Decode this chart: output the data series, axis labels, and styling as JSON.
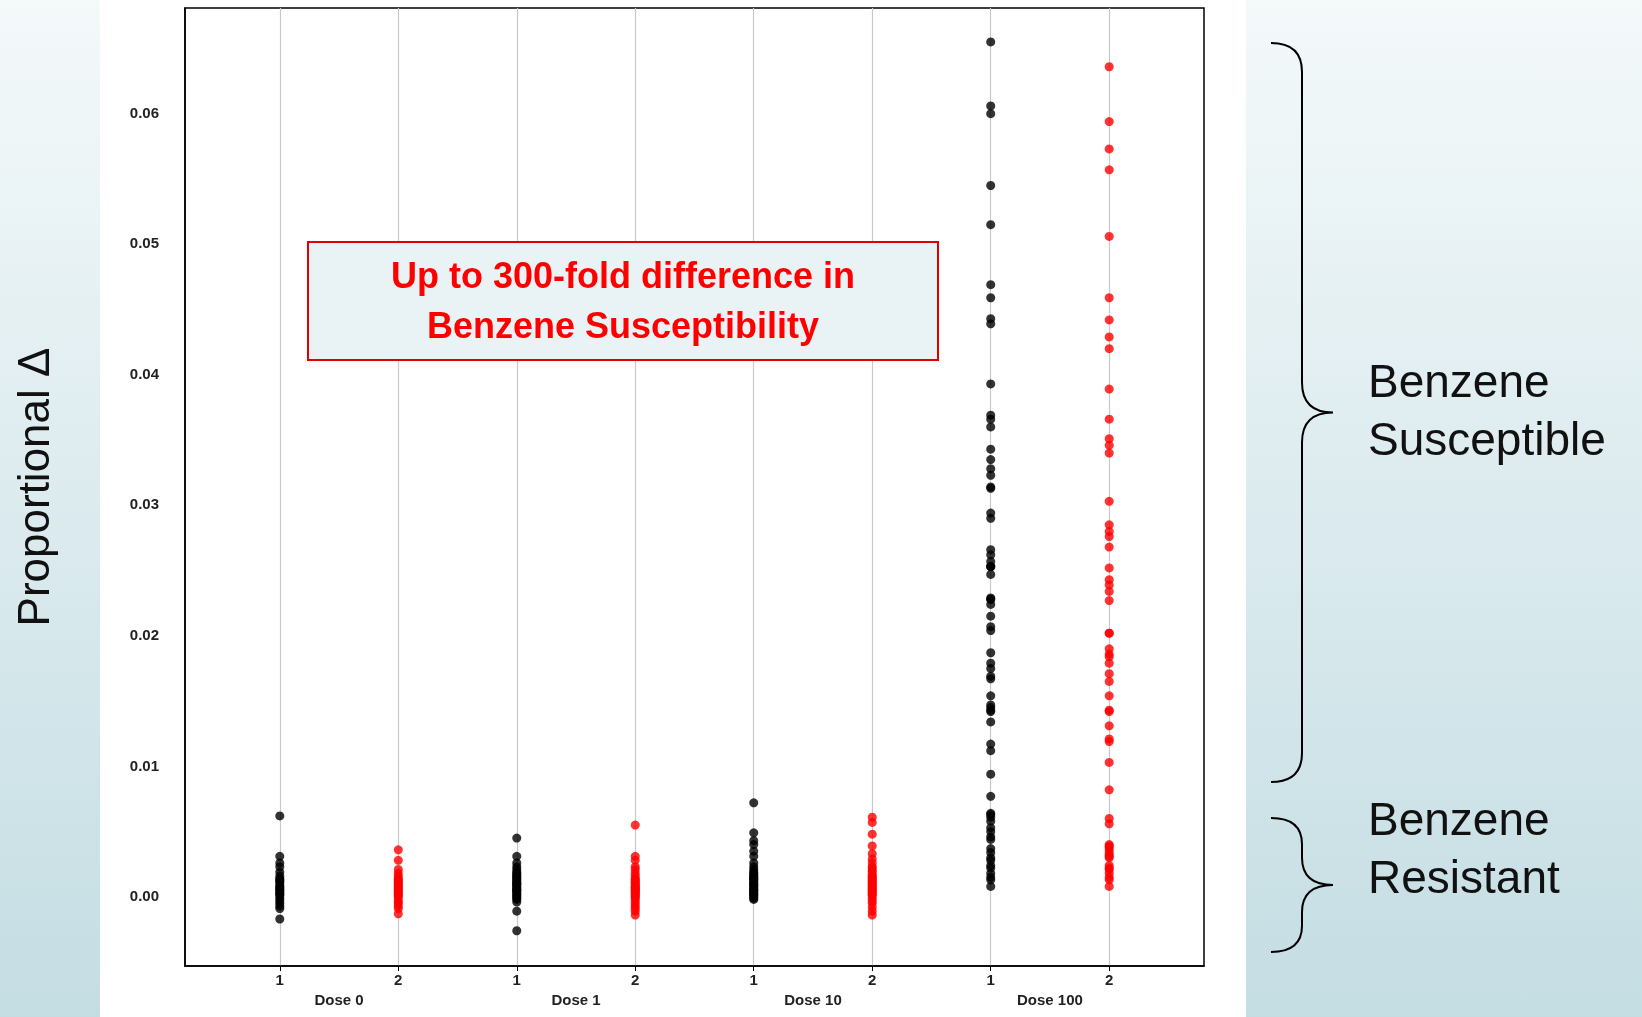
{
  "chart_data": {
    "type": "scatter",
    "ylabel": "Proportional Δ",
    "marker": "circle",
    "grid": "x",
    "legend": false,
    "categories": [
      "Dose 0",
      "Dose 1",
      "Dose 10",
      "Dose 100"
    ],
    "ylim": [
      -0.0054,
      0.068
    ],
    "yticks": [
      {
        "value": 0,
        "label": "0.00"
      },
      {
        "value": 0.01,
        "label": "0.01"
      },
      {
        "value": 0.02,
        "label": "0.02"
      },
      {
        "value": 0.03,
        "label": "0.03"
      },
      {
        "value": 0.04,
        "label": "0.04"
      },
      {
        "value": 0.05,
        "label": "0.05"
      },
      {
        "value": 0.06,
        "label": "0.06"
      }
    ],
    "annotations": [
      "Up to 300-fold difference in Benzene Susceptibility",
      "Benzene Susceptible",
      "Benzene Resistant"
    ],
    "series": [
      {
        "name": "1",
        "color": "#000000",
        "x": [
          "Dose 0",
          "Dose 0",
          "Dose 0",
          "Dose 0",
          "Dose 0",
          "Dose 0",
          "Dose 0",
          "Dose 0",
          "Dose 0",
          "Dose 0",
          "Dose 0",
          "Dose 0",
          "Dose 0",
          "Dose 0",
          "Dose 0",
          "Dose 0",
          "Dose 0",
          "Dose 0",
          "Dose 0",
          "Dose 0",
          "Dose 0",
          "Dose 0",
          "Dose 0",
          "Dose 0",
          "Dose 0",
          "Dose 1",
          "Dose 1",
          "Dose 1",
          "Dose 1",
          "Dose 1",
          "Dose 1",
          "Dose 1",
          "Dose 1",
          "Dose 1",
          "Dose 1",
          "Dose 1",
          "Dose 1",
          "Dose 1",
          "Dose 1",
          "Dose 1",
          "Dose 1",
          "Dose 1",
          "Dose 1",
          "Dose 1",
          "Dose 1",
          "Dose 1",
          "Dose 1",
          "Dose 1",
          "Dose 1",
          "Dose 1",
          "Dose 1",
          "Dose 1",
          "Dose 1",
          "Dose 1",
          "Dose 1",
          "Dose 1",
          "Dose 1",
          "Dose 10",
          "Dose 10",
          "Dose 10",
          "Dose 10",
          "Dose 10",
          "Dose 10",
          "Dose 10",
          "Dose 10",
          "Dose 10",
          "Dose 10",
          "Dose 10",
          "Dose 10",
          "Dose 10",
          "Dose 10",
          "Dose 10",
          "Dose 10",
          "Dose 10",
          "Dose 10",
          "Dose 10",
          "Dose 10",
          "Dose 10",
          "Dose 10",
          "Dose 10",
          "Dose 10",
          "Dose 10",
          "Dose 10",
          "Dose 10",
          "Dose 10",
          "Dose 10",
          "Dose 10",
          "Dose 10",
          "Dose 10",
          "Dose 10",
          "Dose 10",
          "Dose 10",
          "Dose 100",
          "Dose 100",
          "Dose 100",
          "Dose 100",
          "Dose 100",
          "Dose 100",
          "Dose 100",
          "Dose 100",
          "Dose 100",
          "Dose 100",
          "Dose 100",
          "Dose 100",
          "Dose 100",
          "Dose 100",
          "Dose 100",
          "Dose 100",
          "Dose 100",
          "Dose 100",
          "Dose 100",
          "Dose 100",
          "Dose 100",
          "Dose 100",
          "Dose 100",
          "Dose 100",
          "Dose 100",
          "Dose 100",
          "Dose 100",
          "Dose 100",
          "Dose 100",
          "Dose 100",
          "Dose 100",
          "Dose 100",
          "Dose 100",
          "Dose 100",
          "Dose 100",
          "Dose 100",
          "Dose 100",
          "Dose 100",
          "Dose 100",
          "Dose 100",
          "Dose 100",
          "Dose 100",
          "Dose 100",
          "Dose 100",
          "Dose 100",
          "Dose 100",
          "Dose 100",
          "Dose 100",
          "Dose 100",
          "Dose 100",
          "Dose 100",
          "Dose 100",
          "Dose 100",
          "Dose 100",
          "Dose 100",
          "Dose 100",
          "Dose 100",
          "Dose 100",
          "Dose 100",
          "Dose 100",
          "Dose 100",
          "Dose 100",
          "Dose 100",
          "Dose 100",
          "Dose 100",
          "Dose 100",
          "Dose 100",
          "Dose 100"
        ],
        "values": [
          0.0061,
          0.003,
          0.0025,
          0.0022,
          0.0018,
          0.0015,
          0.0013,
          0.0011,
          0.001,
          0.0008,
          0.0006,
          0.0005,
          0.0003,
          0.0002,
          0.0,
          -0.0002,
          -0.0004,
          -0.0006,
          -0.0008,
          -0.001,
          -0.0018,
          0.0012,
          0.0007,
          0.0004,
          0.0001,
          0.0044,
          0.003,
          0.0025,
          0.0022,
          0.002,
          0.0018,
          0.0017,
          0.0015,
          0.0014,
          0.0013,
          0.0012,
          0.0011,
          0.001,
          0.0009,
          0.0008,
          0.0007,
          0.0006,
          0.0005,
          0.0004,
          0.0003,
          0.0002,
          0.0001,
          0.0,
          -0.0001,
          -0.0002,
          -0.0003,
          -0.0005,
          -0.0012,
          -0.0027,
          0.0016,
          0.0009,
          0.0004,
          0.0071,
          0.0048,
          0.0042,
          0.0039,
          0.0034,
          0.003,
          0.0025,
          0.0022,
          0.002,
          0.0018,
          0.0017,
          0.0016,
          0.0015,
          0.0014,
          0.0013,
          0.0012,
          0.0011,
          0.001,
          0.0009,
          0.0008,
          0.0007,
          0.0006,
          0.0005,
          0.0004,
          0.0003,
          0.0002,
          0.0001,
          0.0,
          -0.0001,
          -0.0002,
          -0.0003,
          0.0013,
          0.0008,
          0.0004,
          0.0001,
          0.0654,
          0.0605,
          0.0599,
          0.0544,
          0.0514,
          0.0468,
          0.0458,
          0.0442,
          0.0438,
          0.0392,
          0.0368,
          0.0365,
          0.0359,
          0.0342,
          0.0334,
          0.0327,
          0.0322,
          0.0313,
          0.0312,
          0.0293,
          0.0289,
          0.0265,
          0.0261,
          0.0256,
          0.0252,
          0.0252,
          0.0252,
          0.0246,
          0.0227,
          0.0227,
          0.0228,
          0.0223,
          0.0214,
          0.0206,
          0.0203,
          0.0186,
          0.0178,
          0.0174,
          0.0168,
          0.0166,
          0.0153,
          0.0146,
          0.0144,
          0.0142,
          0.0141,
          0.0133,
          0.0116,
          0.0111,
          0.0093,
          0.0076,
          0.0063,
          0.0062,
          0.006,
          0.0057,
          0.0052,
          0.0049,
          0.0045,
          0.0043,
          0.0036,
          0.0033,
          0.0029,
          0.0027,
          0.0023,
          0.0021,
          0.0017,
          0.0014,
          0.0012,
          0.0007
        ]
      },
      {
        "name": "2",
        "color": "#ff0000",
        "x": [
          "Dose 0",
          "Dose 0",
          "Dose 0",
          "Dose 0",
          "Dose 0",
          "Dose 0",
          "Dose 0",
          "Dose 0",
          "Dose 0",
          "Dose 0",
          "Dose 0",
          "Dose 0",
          "Dose 0",
          "Dose 0",
          "Dose 0",
          "Dose 0",
          "Dose 0",
          "Dose 0",
          "Dose 0",
          "Dose 0",
          "Dose 0",
          "Dose 0",
          "Dose 0",
          "Dose 0",
          "Dose 0",
          "Dose 0",
          "Dose 1",
          "Dose 1",
          "Dose 1",
          "Dose 1",
          "Dose 1",
          "Dose 1",
          "Dose 1",
          "Dose 1",
          "Dose 1",
          "Dose 1",
          "Dose 1",
          "Dose 1",
          "Dose 1",
          "Dose 1",
          "Dose 1",
          "Dose 1",
          "Dose 1",
          "Dose 1",
          "Dose 1",
          "Dose 1",
          "Dose 1",
          "Dose 1",
          "Dose 1",
          "Dose 1",
          "Dose 1",
          "Dose 1",
          "Dose 1",
          "Dose 1",
          "Dose 1",
          "Dose 1",
          "Dose 1",
          "Dose 10",
          "Dose 10",
          "Dose 10",
          "Dose 10",
          "Dose 10",
          "Dose 10",
          "Dose 10",
          "Dose 10",
          "Dose 10",
          "Dose 10",
          "Dose 10",
          "Dose 10",
          "Dose 10",
          "Dose 10",
          "Dose 10",
          "Dose 10",
          "Dose 10",
          "Dose 10",
          "Dose 10",
          "Dose 10",
          "Dose 10",
          "Dose 10",
          "Dose 10",
          "Dose 10",
          "Dose 10",
          "Dose 10",
          "Dose 10",
          "Dose 10",
          "Dose 10",
          "Dose 10",
          "Dose 10",
          "Dose 10",
          "Dose 10",
          "Dose 10",
          "Dose 100",
          "Dose 100",
          "Dose 100",
          "Dose 100",
          "Dose 100",
          "Dose 100",
          "Dose 100",
          "Dose 100",
          "Dose 100",
          "Dose 100",
          "Dose 100",
          "Dose 100",
          "Dose 100",
          "Dose 100",
          "Dose 100",
          "Dose 100",
          "Dose 100",
          "Dose 100",
          "Dose 100",
          "Dose 100",
          "Dose 100",
          "Dose 100",
          "Dose 100",
          "Dose 100",
          "Dose 100",
          "Dose 100",
          "Dose 100",
          "Dose 100",
          "Dose 100",
          "Dose 100",
          "Dose 100",
          "Dose 100",
          "Dose 100",
          "Dose 100",
          "Dose 100",
          "Dose 100",
          "Dose 100",
          "Dose 100",
          "Dose 100",
          "Dose 100",
          "Dose 100",
          "Dose 100",
          "Dose 100",
          "Dose 100",
          "Dose 100",
          "Dose 100",
          "Dose 100",
          "Dose 100",
          "Dose 100",
          "Dose 100",
          "Dose 100",
          "Dose 100",
          "Dose 100",
          "Dose 100",
          "Dose 100",
          "Dose 100",
          "Dose 100"
        ],
        "values": [
          0.0035,
          0.0027,
          0.002,
          0.0017,
          0.0015,
          0.0013,
          0.0012,
          0.001,
          0.0009,
          0.0007,
          0.0006,
          0.0005,
          0.0004,
          0.0003,
          0.0002,
          0.0001,
          0.0,
          -0.0001,
          -0.0003,
          -0.0005,
          -0.0006,
          -0.0008,
          -0.001,
          -0.0014,
          0.0008,
          0.0011,
          0.0054,
          0.003,
          0.0027,
          0.0022,
          0.002,
          0.0017,
          0.0015,
          0.0013,
          0.0012,
          0.0011,
          0.001,
          0.0009,
          0.0008,
          0.0007,
          0.0006,
          0.0005,
          0.0004,
          0.0003,
          0.0002,
          0.0001,
          0.0,
          -0.0001,
          -0.0002,
          -0.0004,
          -0.0006,
          -0.0008,
          -0.001,
          -0.0012,
          -0.0015,
          0.0006,
          0.0003,
          0.006,
          0.0056,
          0.0047,
          0.0038,
          0.0032,
          0.0028,
          0.0025,
          0.0022,
          0.0021,
          0.0019,
          0.0018,
          0.0016,
          0.0015,
          0.0013,
          0.0012,
          0.0011,
          0.001,
          0.0009,
          0.0008,
          0.0007,
          0.0006,
          0.0005,
          0.0004,
          0.0003,
          0.0001,
          0.0,
          -0.0002,
          -0.0004,
          -0.0006,
          -0.0009,
          -0.0012,
          -0.0015,
          0.0014,
          0.0002,
          0.0635,
          0.0593,
          0.0572,
          0.0556,
          0.0505,
          0.0458,
          0.0441,
          0.0428,
          0.0419,
          0.0388,
          0.0365,
          0.035,
          0.0345,
          0.0339,
          0.0302,
          0.0284,
          0.0279,
          0.0275,
          0.0267,
          0.0251,
          0.0242,
          0.0238,
          0.0233,
          0.0226,
          0.0201,
          0.0201,
          0.0189,
          0.0185,
          0.0183,
          0.0178,
          0.017,
          0.0164,
          0.0153,
          0.0142,
          0.0141,
          0.013,
          0.012,
          0.0118,
          0.0102,
          0.0081,
          0.0059,
          0.0055,
          0.0039,
          0.0038,
          0.0037,
          0.0035,
          0.0033,
          0.0031,
          0.003,
          0.0029,
          0.0023,
          0.0021,
          0.002,
          0.0017,
          0.0014,
          0.0012,
          0.0007
        ]
      }
    ]
  }
}
